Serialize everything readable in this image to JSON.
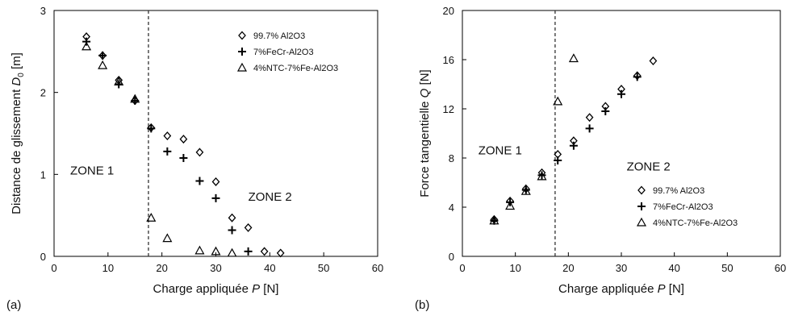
{
  "chart_data": [
    {
      "panel_label": "(a)",
      "type": "scatter",
      "xlabel_prefix": "Charge appliquée ",
      "xlabel_var": "P",
      "xlabel_unit": " [N]",
      "ylabel_prefix": "Distance de glissement ",
      "ylabel_var": "D",
      "ylabel_sub": "0",
      "ylabel_unit": " [m]",
      "xlim": [
        0,
        60
      ],
      "ylim": [
        0,
        3
      ],
      "xticks": [
        "0",
        "10",
        "20",
        "30",
        "40",
        "50",
        "60"
      ],
      "yticks": [
        "0",
        "1",
        "2",
        "3"
      ],
      "grid": false,
      "threshold_x": 17.5,
      "legend_position": "top-right",
      "zones": [
        {
          "label": "ZONE 1",
          "x": 3,
          "y": 1.0
        },
        {
          "label": "ZONE 2",
          "x": 36,
          "y": 0.68
        }
      ],
      "series": [
        {
          "name": "99.7% Al2O3",
          "marker": "diamond",
          "x": [
            6,
            9,
            12,
            15,
            18,
            21,
            24,
            27,
            30,
            33,
            36,
            39,
            42
          ],
          "y": [
            2.68,
            2.45,
            2.15,
            1.9,
            1.57,
            1.47,
            1.43,
            1.27,
            0.91,
            0.47,
            0.35,
            0.06,
            0.04
          ]
        },
        {
          "name": "7%FeCr-Al2O3",
          "marker": "plus",
          "x": [
            6,
            9,
            12,
            15,
            18,
            21,
            24,
            27,
            30,
            33,
            36
          ],
          "y": [
            2.62,
            2.45,
            2.1,
            1.9,
            1.56,
            1.28,
            1.2,
            0.92,
            0.71,
            0.32,
            0.06
          ]
        },
        {
          "name": "4%NTC-7%Fe-Al2O3",
          "marker": "triangle",
          "x": [
            6,
            9,
            12,
            15,
            18,
            21,
            27,
            30,
            33
          ],
          "y": [
            2.56,
            2.33,
            2.13,
            1.92,
            0.47,
            0.22,
            0.07,
            0.06,
            0.04
          ]
        }
      ]
    },
    {
      "panel_label": "(b)",
      "type": "scatter",
      "xlabel_prefix": "Charge appliquée ",
      "xlabel_var": "P",
      "xlabel_unit": " [N]",
      "ylabel_prefix": "Force tangentielle ",
      "ylabel_var": "Q",
      "ylabel_sub": "",
      "ylabel_unit": " [N]",
      "xlim": [
        0,
        60
      ],
      "ylim": [
        0,
        20
      ],
      "xticks": [
        "0",
        "10",
        "20",
        "30",
        "40",
        "50",
        "60"
      ],
      "yticks": [
        "0",
        "4",
        "8",
        "12",
        "16",
        "20"
      ],
      "grid": false,
      "threshold_x": 17.5,
      "legend_position": "bottom-right",
      "zones": [
        {
          "label": "ZONE 1",
          "x": 3,
          "y": 8.3
        },
        {
          "label": "ZONE 2",
          "x": 31,
          "y": 7.0
        }
      ],
      "series": [
        {
          "name": "99.7% Al2O3",
          "marker": "diamond",
          "x": [
            6,
            9,
            12,
            15,
            18,
            21,
            24,
            27,
            30,
            33,
            36
          ],
          "y": [
            3.0,
            4.5,
            5.5,
            6.8,
            8.3,
            9.4,
            11.3,
            12.2,
            13.6,
            14.7,
            15.9
          ]
        },
        {
          "name": "7%FeCr-Al2O3",
          "marker": "plus",
          "x": [
            6,
            9,
            12,
            15,
            18,
            21,
            24,
            27,
            30,
            33
          ],
          "y": [
            2.9,
            4.4,
            5.4,
            6.6,
            7.8,
            9.0,
            10.4,
            11.8,
            13.2,
            14.6
          ]
        },
        {
          "name": "4%NTC-7%Fe-Al2O3",
          "marker": "triangle",
          "x": [
            6,
            9,
            12,
            15,
            18,
            21
          ],
          "y": [
            2.9,
            4.1,
            5.3,
            6.5,
            12.6,
            16.1
          ]
        }
      ]
    }
  ]
}
